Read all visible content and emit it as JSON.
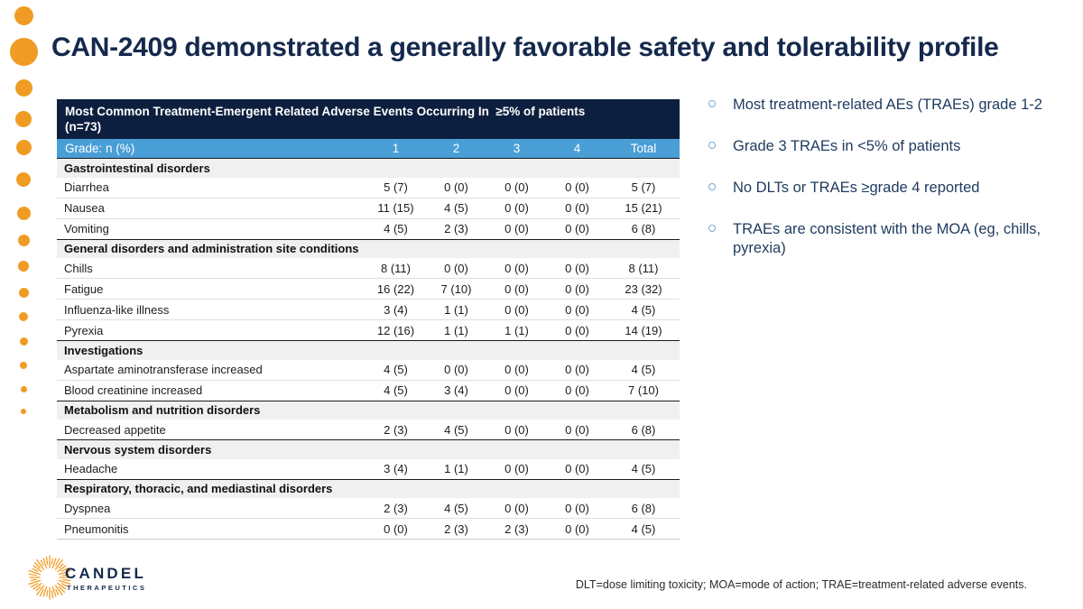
{
  "slide": {
    "title": "CAN-2409 demonstrated a generally favorable safety and tolerability profile"
  },
  "table": {
    "header": "Most Common Treatment-Emergent Related Adverse Events Occurring In  ≥5% of patients\n(n=73)",
    "grade_label": "Grade: n (%)",
    "columns": [
      "1",
      "2",
      "3",
      "4",
      "Total"
    ],
    "sections": [
      {
        "category": "Gastrointestinal disorders",
        "rows": [
          {
            "label": "Diarrhea",
            "values": [
              "5 (7)",
              "0 (0)",
              "0 (0)",
              "0 (0)",
              "5 (7)"
            ]
          },
          {
            "label": "Nausea",
            "values": [
              "11 (15)",
              "4 (5)",
              "0 (0)",
              "0 (0)",
              "15 (21)"
            ]
          },
          {
            "label": "Vomiting",
            "values": [
              "4 (5)",
              "2 (3)",
              "0 (0)",
              "0 (0)",
              "6 (8)"
            ]
          }
        ]
      },
      {
        "category": "General disorders and administration site conditions",
        "rows": [
          {
            "label": "Chills",
            "values": [
              "8 (11)",
              "0 (0)",
              "0 (0)",
              "0 (0)",
              "8 (11)"
            ]
          },
          {
            "label": "Fatigue",
            "values": [
              "16 (22)",
              "7 (10)",
              "0 (0)",
              "0 (0)",
              "23 (32)"
            ]
          },
          {
            "label": "Influenza-like illness",
            "values": [
              "3 (4)",
              "1 (1)",
              "0 (0)",
              "0 (0)",
              "4 (5)"
            ]
          },
          {
            "label": "Pyrexia",
            "values": [
              "12 (16)",
              "1 (1)",
              "1 (1)",
              "0 (0)",
              "14 (19)"
            ]
          }
        ]
      },
      {
        "category": "Investigations",
        "rows": [
          {
            "label": "Aspartate aminotransferase increased",
            "values": [
              "4 (5)",
              "0 (0)",
              "0 (0)",
              "0 (0)",
              "4 (5)"
            ]
          },
          {
            "label": "Blood creatinine increased",
            "values": [
              "4 (5)",
              "3 (4)",
              "0 (0)",
              "0 (0)",
              "7 (10)"
            ]
          }
        ]
      },
      {
        "category": "Metabolism and nutrition disorders",
        "rows": [
          {
            "label": "Decreased appetite",
            "values": [
              "2 (3)",
              "4 (5)",
              "0 (0)",
              "0 (0)",
              "6 (8)"
            ]
          }
        ]
      },
      {
        "category": "Nervous system disorders",
        "rows": [
          {
            "label": "Headache",
            "values": [
              "3 (4)",
              "1 (1)",
              "0 (0)",
              "0 (0)",
              "4 (5)"
            ]
          }
        ]
      },
      {
        "category": "Respiratory, thoracic, and mediastinal disorders",
        "rows": [
          {
            "label": "Dyspnea",
            "values": [
              "2 (3)",
              "4 (5)",
              "0 (0)",
              "0 (0)",
              "6 (8)"
            ]
          },
          {
            "label": "Pneumonitis",
            "values": [
              "0 (0)",
              "2 (3)",
              "2 (3)",
              "0 (0)",
              "4 (5)"
            ]
          }
        ]
      }
    ]
  },
  "bullets": [
    "Most treatment-related AEs (TRAEs) grade 1-2",
    "Grade 3 TRAEs in <5% of patients",
    "No DLTs or TRAEs ≥grade 4 reported",
    "TRAEs are consistent with the MOA (eg, chills, pyrexia)"
  ],
  "footnote": "DLT=dose limiting toxicity; MOA=mode of action; TRAE=treatment-related adverse events.",
  "logo": {
    "name": "CANDEL",
    "subtitle": "THERAPEUTICS"
  },
  "colors": {
    "orange": "#f09c24",
    "navy": "#15294d",
    "navy_dark": "#0d1f3e",
    "blue": "#4a9ed6",
    "bullet_text": "#1d3a5f",
    "bullet_ring": "#74abd4"
  }
}
